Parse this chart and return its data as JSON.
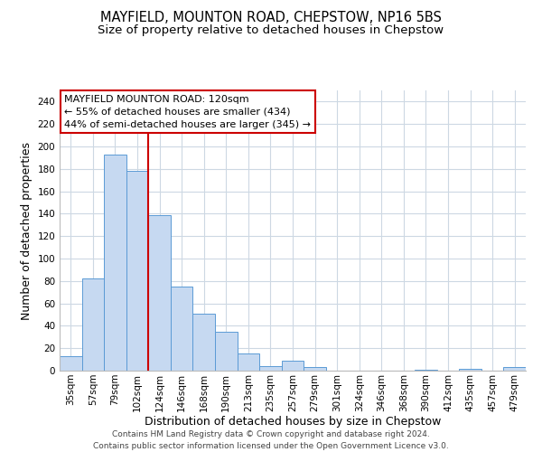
{
  "title": "MAYFIELD, MOUNTON ROAD, CHEPSTOW, NP16 5BS",
  "subtitle": "Size of property relative to detached houses in Chepstow",
  "xlabel": "Distribution of detached houses by size in Chepstow",
  "ylabel": "Number of detached properties",
  "bar_labels": [
    "35sqm",
    "57sqm",
    "79sqm",
    "102sqm",
    "124sqm",
    "146sqm",
    "168sqm",
    "190sqm",
    "213sqm",
    "235sqm",
    "257sqm",
    "279sqm",
    "301sqm",
    "324sqm",
    "346sqm",
    "368sqm",
    "390sqm",
    "412sqm",
    "435sqm",
    "457sqm",
    "479sqm"
  ],
  "bar_values": [
    13,
    82,
    193,
    178,
    139,
    75,
    51,
    35,
    15,
    4,
    9,
    3,
    0,
    0,
    0,
    0,
    1,
    0,
    2,
    0,
    3
  ],
  "bar_color": "#c6d9f1",
  "bar_edge_color": "#5b9bd5",
  "vline_pos": 3.5,
  "vline_color": "#cc0000",
  "ylim": [
    0,
    250
  ],
  "yticks": [
    0,
    20,
    40,
    60,
    80,
    100,
    120,
    140,
    160,
    180,
    200,
    220,
    240
  ],
  "annotation_title": "MAYFIELD MOUNTON ROAD: 120sqm",
  "annotation_line1": "← 55% of detached houses are smaller (434)",
  "annotation_line2": "44% of semi-detached houses are larger (345) →",
  "annotation_box_color": "#ffffff",
  "annotation_box_edge": "#cc0000",
  "footer_line1": "Contains HM Land Registry data © Crown copyright and database right 2024.",
  "footer_line2": "Contains public sector information licensed under the Open Government Licence v3.0.",
  "title_fontsize": 10.5,
  "subtitle_fontsize": 9.5,
  "axis_label_fontsize": 9,
  "tick_fontsize": 7.5,
  "annotation_fontsize": 8.0,
  "footer_fontsize": 6.5,
  "background_color": "#ffffff",
  "grid_color": "#cdd8e3"
}
